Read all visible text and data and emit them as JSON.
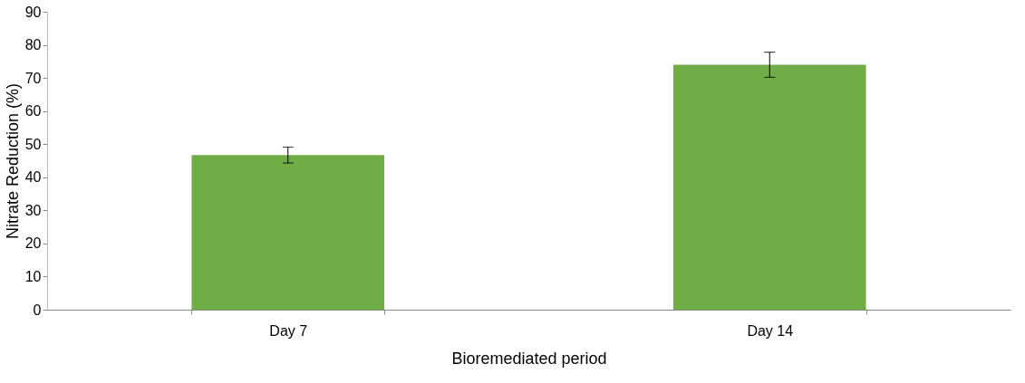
{
  "chart_data": {
    "type": "bar",
    "xlabel": "Bioremediated period",
    "ylabel": "Nitrate Reduction (%)",
    "categories": [
      "Day 7",
      "Day 14"
    ],
    "values": [
      46.7,
      74.0
    ],
    "errors": [
      2.4,
      3.8
    ],
    "color": "#70ad47",
    "ylim": [
      0,
      90
    ],
    "yticks": [
      0,
      10,
      20,
      30,
      40,
      50,
      60,
      70,
      80,
      90
    ],
    "grid": false
  }
}
